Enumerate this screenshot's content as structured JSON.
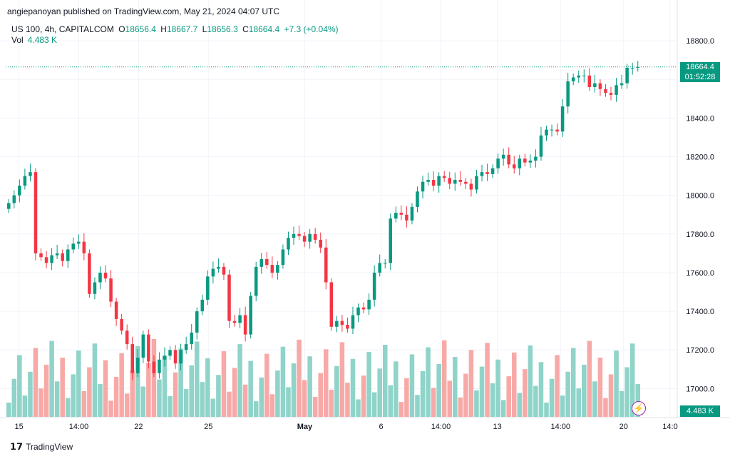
{
  "header": {
    "publish_line": "angiepanoyan published on TradingView.com, May 21, 2024 04:07 UTC"
  },
  "legend": {
    "symbol": "US 100, 4h, CAPITALCOM",
    "o_label": "O",
    "o_value": "18656.4",
    "h_label": "H",
    "h_value": "18667.7",
    "l_label": "L",
    "l_value": "18656.3",
    "c_label": "C",
    "c_value": "18664.4",
    "change": "+7.3 (+0.04%)"
  },
  "volume": {
    "label": "Vol",
    "value": "4.483 K",
    "tag": "4.483 K"
  },
  "price_tag": {
    "price": "18664.4",
    "countdown": "01:52:28"
  },
  "footer": {
    "brand": "TradingView"
  },
  "colors": {
    "up": "#089981",
    "down": "#f23645",
    "up_vol": "#8fd3c9",
    "down_vol": "#f7a9a7",
    "grid": "#f0f3fa"
  },
  "chart_data": {
    "type": "candlestick",
    "y_axis": {
      "min": 16850,
      "max": 18900,
      "ticks": [
        "18800.0",
        "18600.0",
        "18400.0",
        "18200.0",
        "18000.0",
        "17800.0",
        "17600.0",
        "17400.0",
        "17200.0",
        "17000.0"
      ]
    },
    "x_ticks": [
      "15",
      "14:00",
      "22",
      "25",
      "May",
      "6",
      "14:00",
      "13",
      "14:00",
      "20",
      "14:0"
    ],
    "last_price": 18664.4,
    "closes": [
      17960,
      18000,
      18050,
      18100,
      18120,
      17700,
      17680,
      17650,
      17690,
      17700,
      17660,
      17720,
      17750,
      17760,
      17700,
      17490,
      17550,
      17600,
      17570,
      17450,
      17360,
      17300,
      17230,
      17080,
      17160,
      17280,
      17140,
      17080,
      17150,
      17170,
      17200,
      17130,
      17200,
      17230,
      17290,
      17400,
      17460,
      17580,
      17620,
      17630,
      17590,
      17350,
      17340,
      17380,
      17280,
      17480,
      17630,
      17670,
      17640,
      17600,
      17640,
      17720,
      17780,
      17800,
      17790,
      17760,
      17800,
      17770,
      17730,
      17550,
      17320,
      17350,
      17330,
      17310,
      17380,
      17420,
      17410,
      17460,
      17600,
      17650,
      17650,
      17880,
      17910,
      17900,
      17870,
      17940,
      18020,
      18070,
      18080,
      18050,
      18100,
      18090,
      18060,
      18080,
      18070,
      18060,
      18030,
      18100,
      18120,
      18110,
      18140,
      18190,
      18210,
      18160,
      18140,
      18190,
      18170,
      18180,
      18200,
      18310,
      18340,
      18340,
      18330,
      18460,
      18590,
      18610,
      18620,
      18620,
      18560,
      18580,
      18550,
      18530,
      18520,
      18570,
      18580,
      18660,
      18660,
      18664
    ]
  }
}
